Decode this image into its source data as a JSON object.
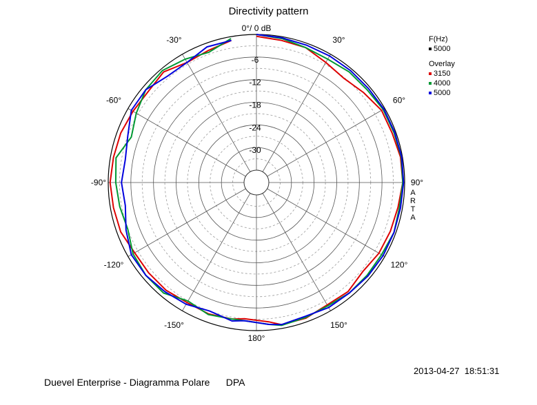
{
  "chart_data": {
    "type": "polar",
    "title": "Directivity pattern",
    "radial_unit": "dB",
    "radial_top_label": "0°/ 0 dB",
    "radial_ticks": [
      {
        "value": -6,
        "label": "-6"
      },
      {
        "value": -12,
        "label": "-12"
      },
      {
        "value": -18,
        "label": "-18"
      },
      {
        "value": -24,
        "label": "-24"
      },
      {
        "value": -30,
        "label": "-30"
      }
    ],
    "rlim": [
      -36,
      0
    ],
    "angle_ticks": [
      {
        "angle": 30,
        "label": "30°"
      },
      {
        "angle": 60,
        "label": "60°"
      },
      {
        "angle": 90,
        "label": "90°"
      },
      {
        "angle": 120,
        "label": "120°"
      },
      {
        "angle": 150,
        "label": "150°"
      },
      {
        "angle": 180,
        "label": "180°"
      },
      {
        "angle": -150,
        "label": "-150°"
      },
      {
        "angle": -120,
        "label": "-120°"
      },
      {
        "angle": -90,
        "label": "-90°"
      },
      {
        "angle": -60,
        "label": "-60°"
      },
      {
        "angle": -30,
        "label": "-30°"
      }
    ],
    "grid": true,
    "legend": {
      "header": "F(Hz)",
      "main": {
        "label": "5000",
        "color": "#000000"
      },
      "overlay_header": "Overlay",
      "items": [
        {
          "label": "3150",
          "color": "#dd0000"
        },
        {
          "label": "4000",
          "color": "#009933"
        },
        {
          "label": "5000",
          "color": "#0000dd"
        }
      ]
    },
    "angles": [
      0,
      10,
      20,
      30,
      40,
      50,
      60,
      70,
      80,
      90,
      100,
      110,
      120,
      130,
      140,
      150,
      160,
      170,
      175,
      185,
      190,
      200,
      210,
      220,
      230,
      240,
      250,
      260,
      270,
      280,
      290,
      300,
      310,
      320,
      330,
      340,
      350
    ],
    "series": [
      {
        "name": "3150",
        "color": "#dd0000",
        "values": [
          -0.5,
          -1.0,
          -1.2,
          -2.5,
          -3.2,
          -2.2,
          -1.0,
          -1.0,
          -0.5,
          -0.5,
          -1.2,
          -1.5,
          -1.8,
          -2.5,
          -1.5,
          -1.8,
          -1.0,
          -1.0,
          -2.2,
          -3.0,
          -2.5,
          -2.2,
          -2.5,
          -2.0,
          -2.0,
          -2.0,
          -1.0,
          -0.8,
          -0.5,
          -0.8,
          -1.0,
          -1.5,
          -1.8,
          -1.0,
          -2.5,
          -2.0,
          -1.0
        ]
      },
      {
        "name": "4000",
        "color": "#009933",
        "values": [
          0.0,
          -0.5,
          -1.2,
          -1.5,
          -1.0,
          -1.0,
          -0.5,
          -0.5,
          -0.3,
          -0.5,
          -0.8,
          -0.5,
          -1.0,
          -1.0,
          -1.0,
          -1.5,
          -1.2,
          -0.8,
          -1.5,
          -2.5,
          -2.5,
          -2.0,
          -3.0,
          -1.0,
          -1.0,
          -1.5,
          -3.0,
          -2.5,
          -2.0,
          -1.5,
          -4.0,
          -2.5,
          -1.0,
          -0.5,
          -1.5,
          -2.5,
          -0.5
        ]
      },
      {
        "name": "5000",
        "color": "#0000dd",
        "values": [
          0.0,
          -0.3,
          -0.5,
          -0.5,
          -0.5,
          -0.5,
          -0.3,
          -0.3,
          -0.2,
          -0.3,
          -0.5,
          -0.5,
          -0.5,
          -0.7,
          -1.0,
          -1.0,
          -1.5,
          -1.0,
          -1.5,
          -2.5,
          -2.0,
          -3.0,
          -2.0,
          -1.5,
          -1.0,
          -1.0,
          -2.5,
          -4.0,
          -3.5,
          -4.0,
          -3.0,
          -1.0,
          -1.0,
          -2.5,
          -2.5,
          -1.0,
          -1.0
        ]
      }
    ]
  },
  "side_text": "ARTA",
  "footer": {
    "left": "Duevel Enterprise - Diagramma Polare      DPA",
    "timestamp": "2013-04-27  18:51:31"
  }
}
